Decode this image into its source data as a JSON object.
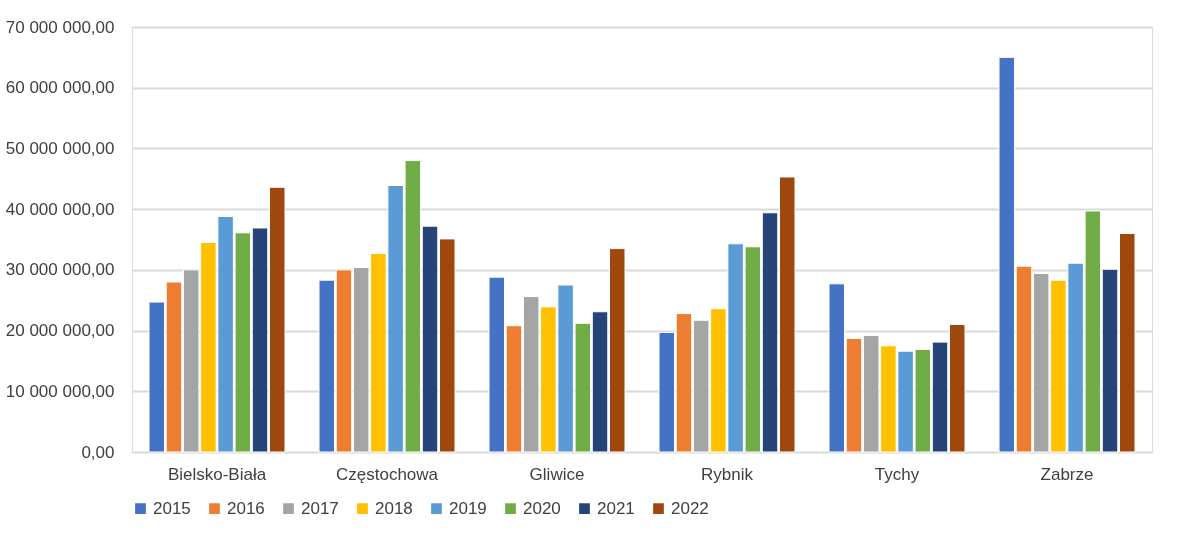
{
  "chart_data": {
    "type": "bar",
    "categories": [
      "Bielsko-Biała",
      "Częstochowa",
      "Gliwice",
      "Rybnik",
      "Tychy",
      "Zabrze"
    ],
    "series": [
      {
        "name": "2015",
        "color": "#4472c4",
        "values": [
          24700000,
          28300000,
          28800000,
          19700000,
          27700000,
          65000000
        ]
      },
      {
        "name": "2016",
        "color": "#ed7d31",
        "values": [
          28000000,
          30000000,
          20800000,
          22800000,
          18700000,
          30600000
        ]
      },
      {
        "name": "2017",
        "color": "#a5a5a5",
        "values": [
          30000000,
          30400000,
          25600000,
          21700000,
          19200000,
          29400000
        ]
      },
      {
        "name": "2018",
        "color": "#ffc000",
        "values": [
          34500000,
          32700000,
          23900000,
          23600000,
          17500000,
          28300000
        ]
      },
      {
        "name": "2019",
        "color": "#5b9bd5",
        "values": [
          38800000,
          43900000,
          27500000,
          34300000,
          16600000,
          31100000
        ]
      },
      {
        "name": "2020",
        "color": "#70ad47",
        "values": [
          36100000,
          48000000,
          21200000,
          33800000,
          16900000,
          39700000
        ]
      },
      {
        "name": "2021",
        "color": "#264478",
        "values": [
          36900000,
          37200000,
          23100000,
          39400000,
          18100000,
          30100000
        ]
      },
      {
        "name": "2022",
        "color": "#9e480e",
        "values": [
          43600000,
          35100000,
          33500000,
          45300000,
          21000000,
          36000000
        ]
      }
    ],
    "ylim": [
      0,
      70000000
    ],
    "yticks": [
      {
        "value": 0,
        "label": "0,00"
      },
      {
        "value": 10000000,
        "label": "10 000 000,00"
      },
      {
        "value": 20000000,
        "label": "20 000 000,00"
      },
      {
        "value": 30000000,
        "label": "30 000 000,00"
      },
      {
        "value": 40000000,
        "label": "40 000 000,00"
      },
      {
        "value": 50000000,
        "label": "50 000 000,00"
      },
      {
        "value": 60000000,
        "label": "60 000 000,00"
      },
      {
        "value": 70000000,
        "label": "70 000 000,00"
      }
    ],
    "grid": "y",
    "legend": "bottom"
  }
}
